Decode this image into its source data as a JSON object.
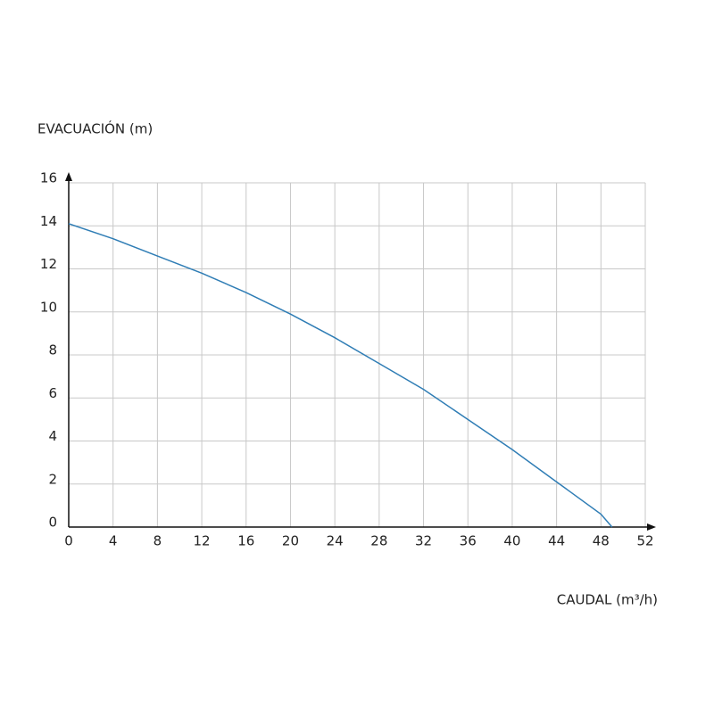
{
  "chart_data": {
    "type": "line",
    "y_label": "EVACUACIÓN (m)",
    "x_label": "CAUDAL (m³/h)",
    "x": [
      0,
      4,
      8,
      12,
      16,
      20,
      24,
      28,
      32,
      36,
      40,
      44,
      48,
      49
    ],
    "values": [
      14.1,
      13.4,
      12.6,
      11.8,
      10.9,
      9.9,
      8.8,
      7.6,
      6.4,
      5.0,
      3.6,
      2.1,
      0.6,
      0
    ],
    "color": "#2f7db5",
    "xlim": [
      0,
      52
    ],
    "xticks": [
      0,
      4,
      8,
      12,
      16,
      20,
      24,
      28,
      32,
      36,
      40,
      44,
      48,
      52
    ],
    "ylim": [
      0,
      16
    ],
    "yticks": [
      0,
      2,
      4,
      6,
      8,
      10,
      12,
      14,
      16
    ],
    "grid": true
  }
}
